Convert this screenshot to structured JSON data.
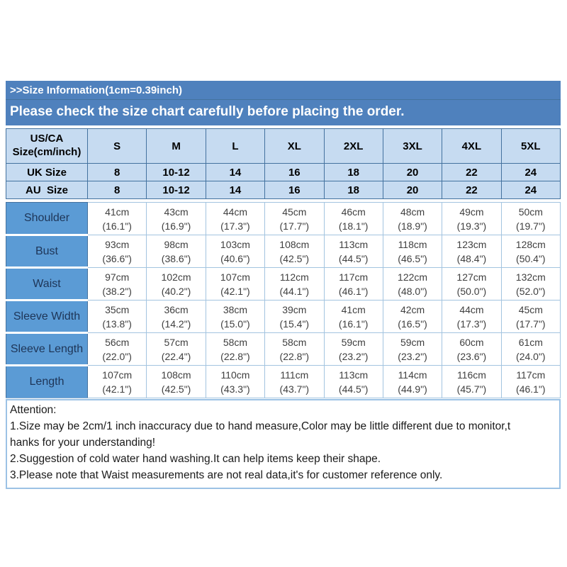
{
  "header": {
    "line1": ">>Size Information(1cm=0.39inch)",
    "line2": "Please check the size chart carefully before placing the order."
  },
  "table": {
    "corner_label_line1": "US/CA",
    "corner_label_line2": "Size(cm/inch)",
    "size_columns": [
      "S",
      "M",
      "L",
      "XL",
      "2XL",
      "3XL",
      "4XL",
      "5XL"
    ],
    "size_rows": [
      {
        "label": "UK Size",
        "values": [
          "8",
          "10-12",
          "14",
          "16",
          "18",
          "20",
          "22",
          "24"
        ]
      },
      {
        "label": "AU  Size",
        "values": [
          "8",
          "10-12",
          "14",
          "16",
          "18",
          "20",
          "22",
          "24"
        ]
      }
    ],
    "measurement_rows": [
      {
        "label": "Shoulder",
        "cm": [
          "41cm",
          "43cm",
          "44cm",
          "45cm",
          "46cm",
          "48cm",
          "49cm",
          "50cm"
        ],
        "inch": [
          "(16.1\")",
          "(16.9\")",
          "(17.3\")",
          "(17.7\")",
          "(18.1\")",
          "(18.9\")",
          "(19.3\")",
          "(19.7\")"
        ]
      },
      {
        "label": "Bust",
        "cm": [
          "93cm",
          "98cm",
          "103cm",
          "108cm",
          "113cm",
          "118cm",
          "123cm",
          "128cm"
        ],
        "inch": [
          "(36.6\")",
          "(38.6\")",
          "(40.6\")",
          "(42.5\")",
          "(44.5\")",
          "(46.5\")",
          "(48.4\")",
          "(50.4\")"
        ]
      },
      {
        "label": "Waist",
        "cm": [
          "97cm",
          "102cm",
          "107cm",
          "112cm",
          "117cm",
          "122cm",
          "127cm",
          "132cm"
        ],
        "inch": [
          "(38.2\")",
          "(40.2\")",
          "(42.1\")",
          "(44.1\")",
          "(46.1\")",
          "(48.0\")",
          "(50.0\")",
          "(52.0\")"
        ]
      },
      {
        "label": "Sleeve Width",
        "cm": [
          "35cm",
          "36cm",
          "38cm",
          "39cm",
          "41cm",
          "42cm",
          "44cm",
          "45cm"
        ],
        "inch": [
          "(13.8\")",
          "(14.2\")",
          "(15.0\")",
          "(15.4\")",
          "(16.1\")",
          "(16.5\")",
          "(17.3\")",
          "(17.7\")"
        ]
      },
      {
        "label": "Sleeve Length",
        "cm": [
          "56cm",
          "57cm",
          "58cm",
          "58cm",
          "59cm",
          "59cm",
          "60cm",
          "61cm"
        ],
        "inch": [
          "(22.0\")",
          "(22.4\")",
          "(22.8\")",
          "(22.8\")",
          "(23.2\")",
          "(23.2\")",
          "(23.6\")",
          "(24.0\")"
        ]
      },
      {
        "label": "Length",
        "cm": [
          "107cm",
          "108cm",
          "110cm",
          "111cm",
          "113cm",
          "114cm",
          "116cm",
          "117cm"
        ],
        "inch": [
          "(42.1\")",
          "(42.5\")",
          "(43.3\")",
          "(43.7\")",
          "(44.5\")",
          "(44.9\")",
          "(45.7\")",
          "(46.1\")"
        ]
      }
    ]
  },
  "notes": {
    "lines": [
      "Attention:",
      "1.Size may be 2cm/1 inch inaccuracy due to hand measure,Color may be little different due to monitor,t",
      "hanks for your understanding!",
      "2.Suggestion of cold water hand washing.It can help items keep their shape.",
      "3.Please note that Waist measurements are not real data,it's for customer reference only."
    ]
  },
  "colors": {
    "band_blue": "#4f81bd",
    "light_blue": "#c6dbf1",
    "label_blue": "#5b9bd5",
    "border_dark": "#44729f",
    "border_light": "#a3c4e0",
    "note_border": "#9cc2e5"
  }
}
